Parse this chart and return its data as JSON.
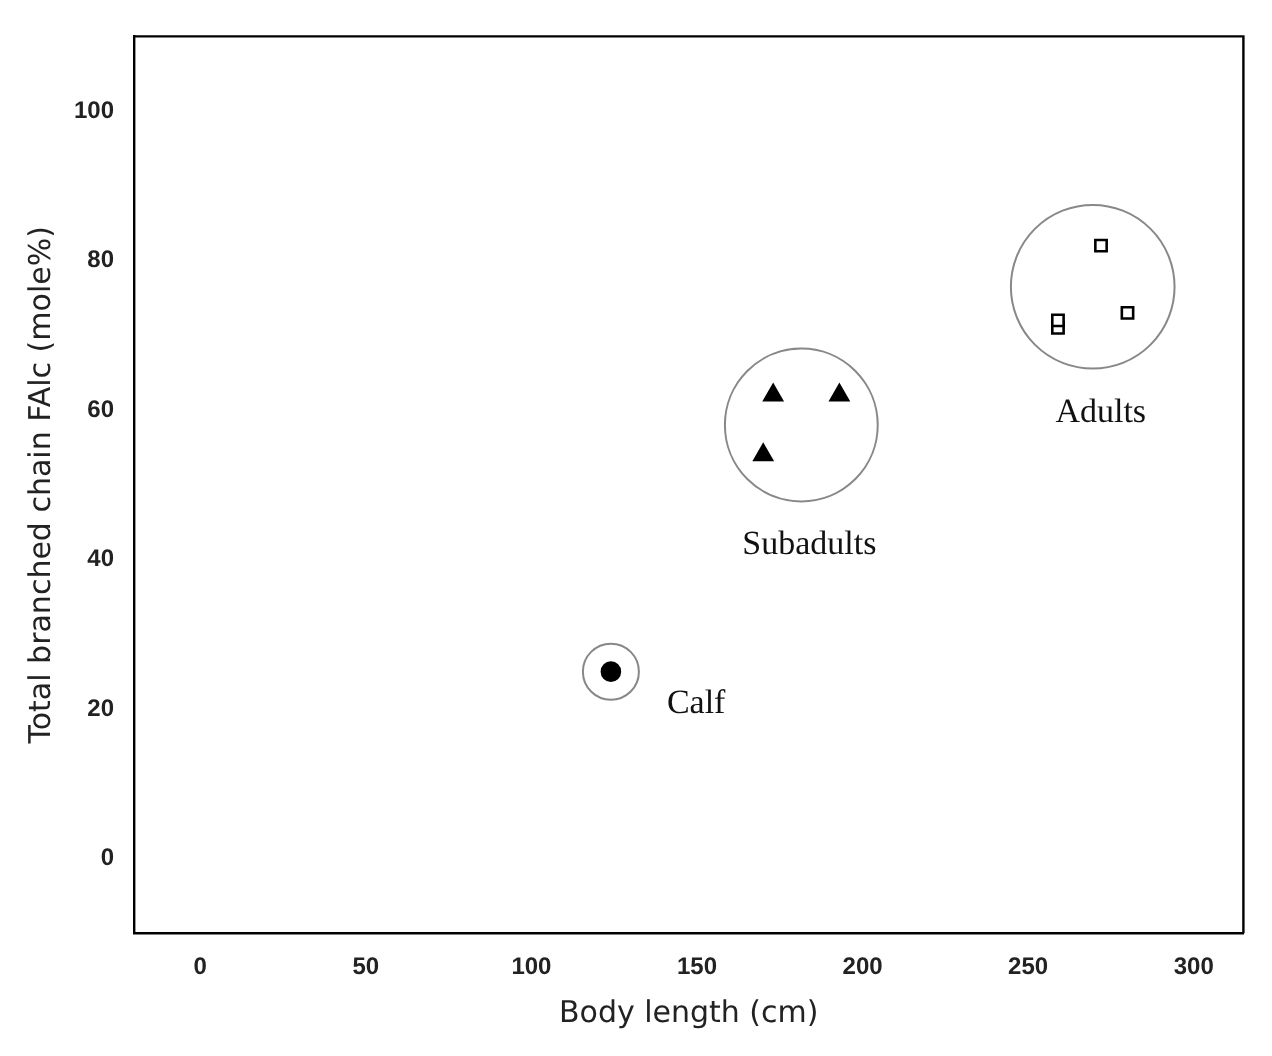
{
  "chart_data": {
    "type": "scatter",
    "xlabel": "Body length (cm)",
    "ylabel": "Total branched chain FAlc (mole%)",
    "xlim": [
      -20,
      315
    ],
    "xticks": [
      0,
      50,
      100,
      150,
      200,
      250,
      300
    ],
    "ylim": [
      -10,
      110
    ],
    "yticks": [
      0,
      20,
      40,
      60,
      80,
      100
    ],
    "grid": false,
    "legend": false,
    "series": [
      {
        "color": "#000000",
        "marker": "circle",
        "x": [
          124
        ],
        "values": [
          25
        ]
      },
      {
        "color": "#000000",
        "marker": "triangle",
        "x": [
          173,
          193,
          170
        ],
        "values": [
          62,
          62,
          54
        ]
      },
      {
        "color": "#000000",
        "marker": "square",
        "x": [
          259,
          259,
          280,
          272
        ],
        "values": [
          71,
          72,
          73,
          82
        ]
      }
    ],
    "annotations": [
      "Calf",
      "Subadults",
      "Adults"
    ]
  }
}
